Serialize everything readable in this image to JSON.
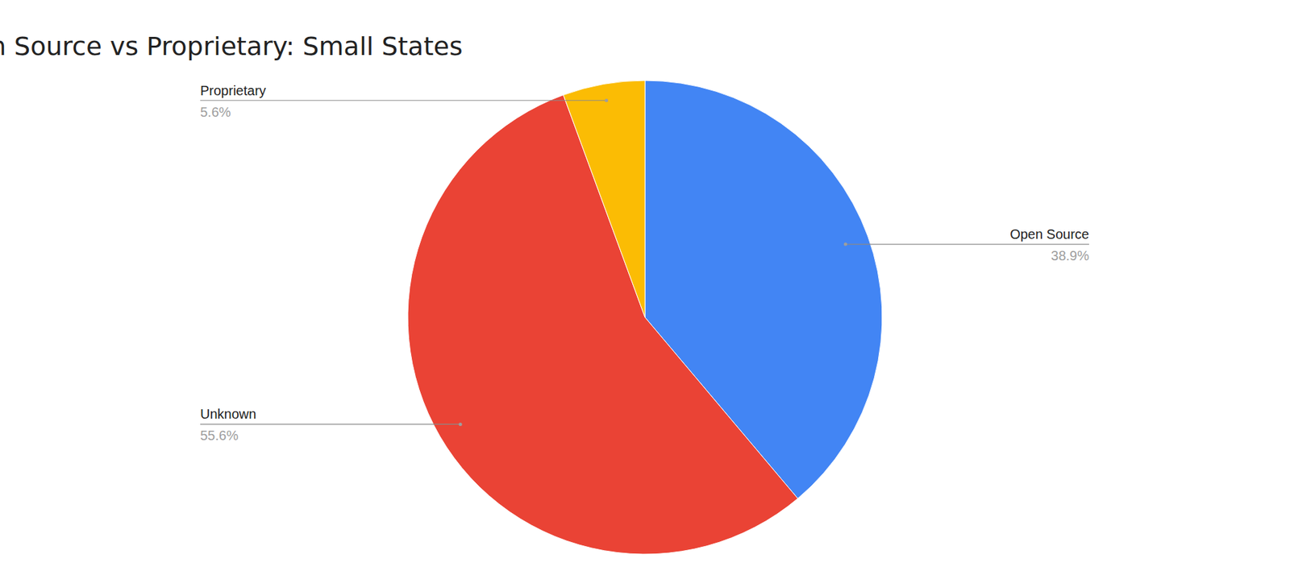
{
  "chart_data": {
    "type": "pie",
    "title": "Open Source vs Proprietary: Small States",
    "categories": [
      "Open Source",
      "Unknown",
      "Proprietary"
    ],
    "values": [
      38.9,
      55.6,
      5.6
    ],
    "value_labels": [
      "38.9%",
      "55.6%",
      "5.6%"
    ],
    "colors": [
      "#4285f4",
      "#ea4335",
      "#fbbc04"
    ],
    "data_labels": true
  }
}
